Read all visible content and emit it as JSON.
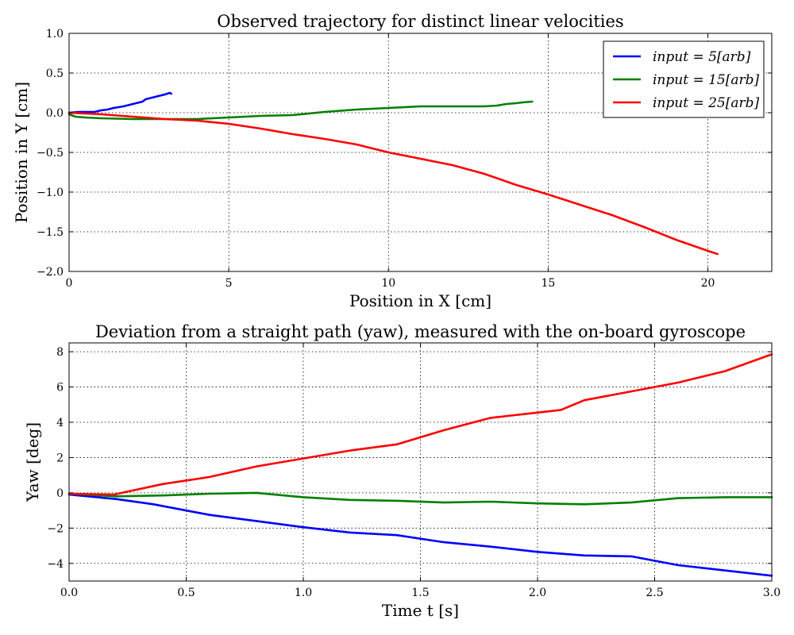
{
  "chart_data": [
    {
      "type": "line",
      "title": "Observed trajectory for distinct linear velocities",
      "xlabel": "Position in X [cm]",
      "ylabel": "Position in Y [cm]",
      "xlim": [
        0,
        22
      ],
      "ylim": [
        -2.0,
        1.0
      ],
      "xticks": [
        0,
        5,
        10,
        15,
        20
      ],
      "xtick_labels": [
        "0",
        "5",
        "10",
        "15",
        "20"
      ],
      "yticks": [
        1.0,
        0.5,
        0.0,
        -0.5,
        -1.0,
        -1.5,
        -2.0
      ],
      "ytick_labels": [
        "1.0",
        "0.5",
        "0.0",
        "−0.5",
        "−1.0",
        "−1.5",
        "−2.0"
      ],
      "grid": true,
      "legend": "top-right",
      "series": [
        {
          "name": "input = 5[arb]",
          "color": "#0000ff",
          "x": [
            0,
            0.3,
            0.6,
            0.8,
            1.0,
            1.2,
            1.4,
            1.7,
            1.9,
            2.1,
            2.3,
            2.4,
            2.6,
            2.8,
            3.0,
            3.15,
            3.2
          ],
          "y": [
            0.0,
            0.01,
            0.01,
            0.01,
            0.03,
            0.04,
            0.06,
            0.08,
            0.1,
            0.12,
            0.14,
            0.17,
            0.19,
            0.21,
            0.23,
            0.25,
            0.24
          ]
        },
        {
          "name": "input = 15[arb]",
          "color": "#008000",
          "x": [
            0,
            0.2,
            0.5,
            1.0,
            2.0,
            3.0,
            4.0,
            5.0,
            6.0,
            7.0,
            8.0,
            9.0,
            10.0,
            11.0,
            12.0,
            13.0,
            13.4,
            13.7,
            14.0,
            14.2,
            14.5
          ],
          "y": [
            -0.02,
            -0.05,
            -0.06,
            -0.07,
            -0.08,
            -0.08,
            -0.08,
            -0.06,
            -0.04,
            -0.03,
            0.01,
            0.04,
            0.06,
            0.08,
            0.08,
            0.08,
            0.09,
            0.11,
            0.12,
            0.13,
            0.14
          ]
        },
        {
          "name": "input = 25[arb]",
          "color": "#ff0000",
          "x": [
            0,
            1,
            2,
            3,
            4,
            5,
            6,
            7,
            8,
            9,
            10,
            11,
            12,
            13,
            14,
            15,
            16,
            17,
            18,
            19,
            20,
            20.3
          ],
          "y": [
            0.0,
            -0.02,
            -0.05,
            -0.08,
            -0.1,
            -0.14,
            -0.2,
            -0.27,
            -0.33,
            -0.4,
            -0.5,
            -0.58,
            -0.66,
            -0.77,
            -0.91,
            -1.03,
            -1.16,
            -1.29,
            -1.44,
            -1.6,
            -1.74,
            -1.78
          ]
        }
      ]
    },
    {
      "type": "line",
      "title": "Deviation from a straight path (yaw), measured with the on-board gyroscope",
      "xlabel": "Time t [s]",
      "ylabel": "Yaw [deg]",
      "xlim": [
        0.0,
        3.0
      ],
      "ylim": [
        -5,
        8.5
      ],
      "xticks": [
        0.0,
        0.5,
        1.0,
        1.5,
        2.0,
        2.5,
        3.0
      ],
      "xtick_labels": [
        "0.0",
        "0.5",
        "1.0",
        "1.5",
        "2.0",
        "2.5",
        "3.0"
      ],
      "yticks": [
        8,
        6,
        4,
        2,
        0,
        -2,
        -4
      ],
      "ytick_labels": [
        "8",
        "6",
        "4",
        "2",
        "0",
        "−2",
        "−4"
      ],
      "grid": true,
      "series": [
        {
          "name": "input = 5[arb]",
          "color": "#0000ff",
          "x": [
            0.0,
            0.2,
            0.36,
            0.6,
            0.8,
            1.0,
            1.2,
            1.4,
            1.6,
            1.8,
            2.0,
            2.2,
            2.4,
            2.6,
            2.8,
            3.0
          ],
          "y": [
            -0.1,
            -0.35,
            -0.65,
            -1.25,
            -1.6,
            -1.95,
            -2.25,
            -2.4,
            -2.8,
            -3.05,
            -3.35,
            -3.55,
            -3.6,
            -4.1,
            -4.4,
            -4.7
          ]
        },
        {
          "name": "input = 15[arb]",
          "color": "#008000",
          "x": [
            0.0,
            0.2,
            0.4,
            0.6,
            0.8,
            1.0,
            1.2,
            1.4,
            1.6,
            1.8,
            2.0,
            2.2,
            2.4,
            2.6,
            2.8,
            3.0
          ],
          "y": [
            -0.05,
            -0.2,
            -0.15,
            -0.05,
            0.0,
            -0.25,
            -0.4,
            -0.45,
            -0.55,
            -0.5,
            -0.6,
            -0.65,
            -0.55,
            -0.3,
            -0.25,
            -0.25
          ]
        },
        {
          "name": "input = 25[arb]",
          "color": "#ff0000",
          "x": [
            0.0,
            0.19,
            0.4,
            0.6,
            0.8,
            1.0,
            1.2,
            1.4,
            1.6,
            1.8,
            2.0,
            2.1,
            2.2,
            2.4,
            2.6,
            2.8,
            3.0
          ],
          "y": [
            -0.05,
            -0.1,
            0.5,
            0.9,
            1.5,
            1.95,
            2.4,
            2.75,
            3.55,
            4.25,
            4.55,
            4.7,
            5.25,
            5.75,
            6.25,
            6.9,
            7.85
          ]
        }
      ]
    }
  ]
}
